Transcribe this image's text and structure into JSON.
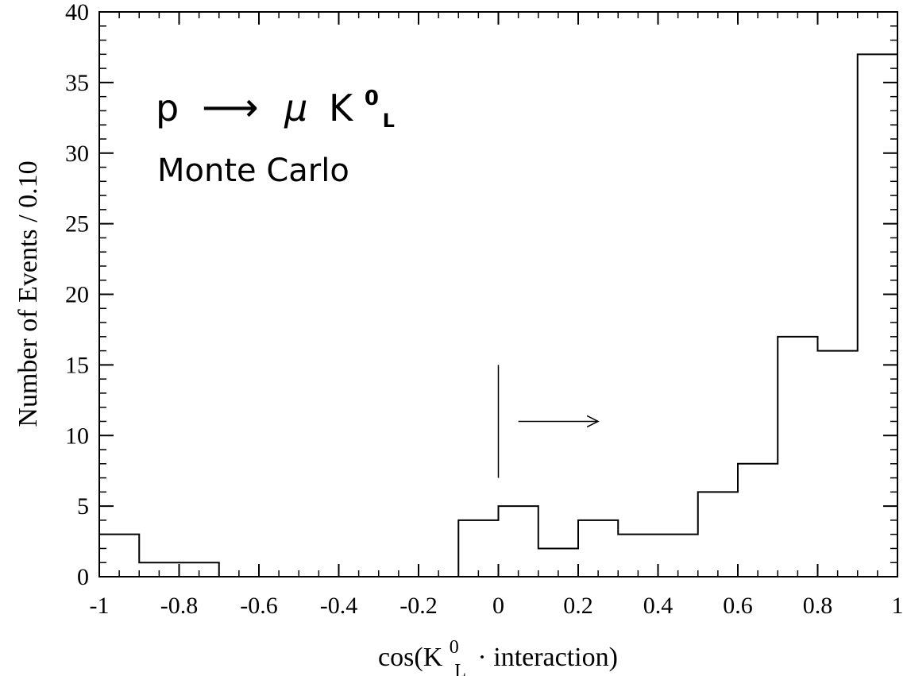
{
  "chart_data": {
    "type": "bar",
    "style": "histogram-step",
    "bin_edges": [
      -1.0,
      -0.9,
      -0.8,
      -0.7,
      -0.6,
      -0.5,
      -0.4,
      -0.3,
      -0.2,
      -0.1,
      0.0,
      0.1,
      0.2,
      0.3,
      0.4,
      0.5,
      0.6,
      0.7,
      0.8,
      0.9,
      1.0
    ],
    "values": [
      3,
      1,
      1,
      0,
      0,
      0,
      0,
      0,
      0,
      4,
      5,
      2,
      4,
      3,
      3,
      6,
      8,
      17,
      16,
      37
    ],
    "xlim": [
      -1,
      1
    ],
    "ylim": [
      0,
      40
    ],
    "x_ticks": [
      "-1",
      "-0.8",
      "-0.6",
      "-0.4",
      "-0.2",
      "0",
      "0.2",
      "0.4",
      "0.6",
      "0.8",
      "1"
    ],
    "y_ticks": [
      "0",
      "5",
      "10",
      "15",
      "20",
      "25",
      "30",
      "35",
      "40"
    ],
    "ylabel": "Number of Events / 0.10",
    "xlabel": {
      "prefix": "cos(K",
      "sup": "0",
      "sub": "L",
      "suffix": "· interaction)"
    },
    "annotation": {
      "process": {
        "p": "p",
        "arrow": "⟶",
        "mu": "μ",
        "k": "K",
        "k_sup": "0",
        "k_sub": "L"
      },
      "label": "Monte Carlo"
    },
    "cut": {
      "x": 0.0,
      "y_range": [
        7,
        15
      ],
      "arrow_from_x": 0.05,
      "arrow_to_x": 0.25,
      "arrow_y": 11
    },
    "grid": false,
    "legend": "none"
  }
}
